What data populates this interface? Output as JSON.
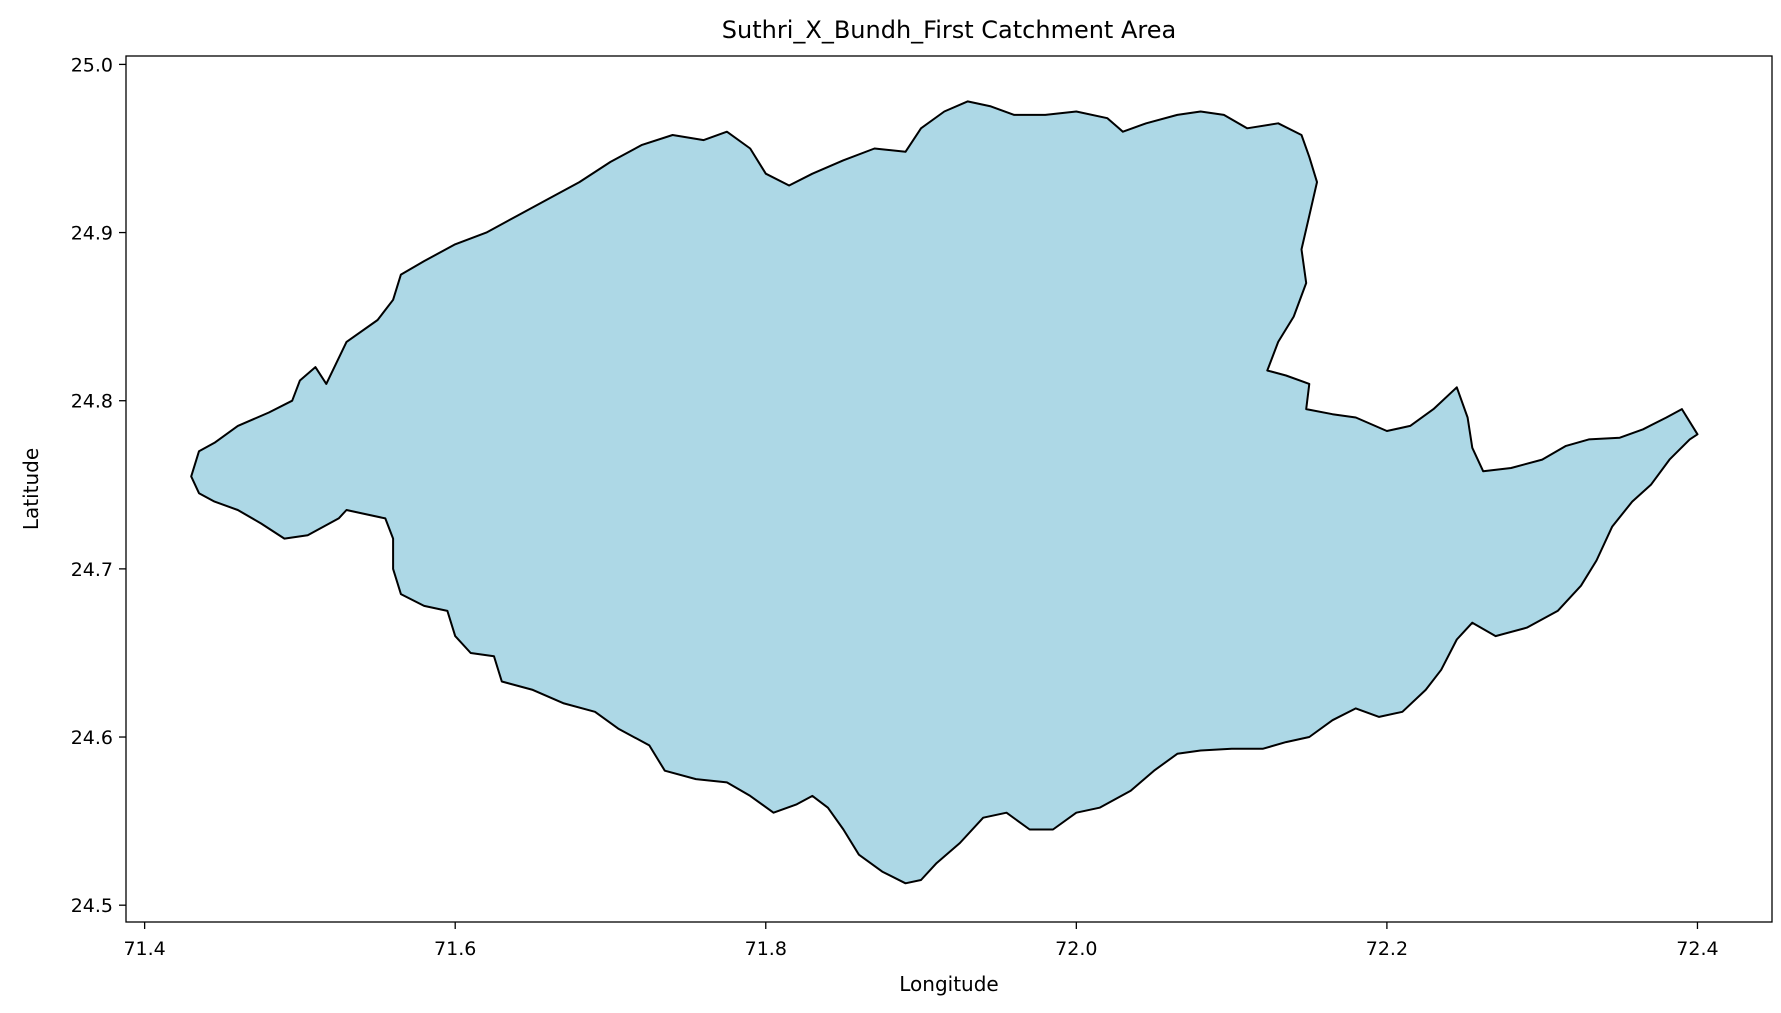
{
  "chart_data": {
    "type": "map-polygon",
    "title": "Suthri_X_Bundh_First Catchment Area",
    "xlabel": "Longitude",
    "ylabel": "Latitude",
    "xlim": [
      71.388,
      72.448
    ],
    "ylim": [
      24.49,
      25.005
    ],
    "xticks": [
      {
        "value": 71.4,
        "label": "71.4"
      },
      {
        "value": 71.6,
        "label": "71.6"
      },
      {
        "value": 71.8,
        "label": "71.8"
      },
      {
        "value": 72.0,
        "label": "72.0"
      },
      {
        "value": 72.2,
        "label": "72.2"
      },
      {
        "value": 72.4,
        "label": "72.4"
      }
    ],
    "yticks": [
      {
        "value": 24.5,
        "label": "24.5"
      },
      {
        "value": 24.6,
        "label": "24.6"
      },
      {
        "value": 24.7,
        "label": "24.7"
      },
      {
        "value": 24.8,
        "label": "24.8"
      },
      {
        "value": 24.9,
        "label": "24.9"
      },
      {
        "value": 25.0,
        "label": "25.0"
      }
    ],
    "grid": false,
    "fill_color": "#add8e6",
    "edge_color": "#000000",
    "boundary": [
      [
        71.43,
        24.755
      ],
      [
        71.435,
        24.77
      ],
      [
        71.445,
        24.775
      ],
      [
        71.46,
        24.785
      ],
      [
        71.48,
        24.793
      ],
      [
        71.495,
        24.8
      ],
      [
        71.5,
        24.812
      ],
      [
        71.51,
        24.82
      ],
      [
        71.517,
        24.81
      ],
      [
        71.53,
        24.835
      ],
      [
        71.55,
        24.848
      ],
      [
        71.56,
        24.86
      ],
      [
        71.565,
        24.875
      ],
      [
        71.58,
        24.883
      ],
      [
        71.6,
        24.893
      ],
      [
        71.62,
        24.9
      ],
      [
        71.64,
        24.91
      ],
      [
        71.66,
        24.92
      ],
      [
        71.68,
        24.93
      ],
      [
        71.7,
        24.942
      ],
      [
        71.72,
        24.952
      ],
      [
        71.74,
        24.958
      ],
      [
        71.76,
        24.955
      ],
      [
        71.775,
        24.96
      ],
      [
        71.79,
        24.95
      ],
      [
        71.8,
        24.935
      ],
      [
        71.815,
        24.928
      ],
      [
        71.83,
        24.935
      ],
      [
        71.85,
        24.943
      ],
      [
        71.87,
        24.95
      ],
      [
        71.89,
        24.948
      ],
      [
        71.9,
        24.962
      ],
      [
        71.915,
        24.972
      ],
      [
        71.93,
        24.978
      ],
      [
        71.945,
        24.975
      ],
      [
        71.96,
        24.97
      ],
      [
        71.98,
        24.97
      ],
      [
        72.0,
        24.972
      ],
      [
        72.02,
        24.968
      ],
      [
        72.03,
        24.96
      ],
      [
        72.045,
        24.965
      ],
      [
        72.065,
        24.97
      ],
      [
        72.08,
        24.972
      ],
      [
        72.095,
        24.97
      ],
      [
        72.11,
        24.962
      ],
      [
        72.13,
        24.965
      ],
      [
        72.145,
        24.958
      ],
      [
        72.15,
        24.945
      ],
      [
        72.155,
        24.93
      ],
      [
        72.15,
        24.91
      ],
      [
        72.145,
        24.89
      ],
      [
        72.148,
        24.87
      ],
      [
        72.14,
        24.85
      ],
      [
        72.13,
        24.835
      ],
      [
        72.123,
        24.818
      ],
      [
        72.135,
        24.815
      ],
      [
        72.15,
        24.81
      ],
      [
        72.148,
        24.795
      ],
      [
        72.165,
        24.792
      ],
      [
        72.18,
        24.79
      ],
      [
        72.2,
        24.782
      ],
      [
        72.215,
        24.785
      ],
      [
        72.23,
        24.795
      ],
      [
        72.245,
        24.808
      ],
      [
        72.252,
        24.79
      ],
      [
        72.255,
        24.772
      ],
      [
        72.262,
        24.758
      ],
      [
        72.28,
        24.76
      ],
      [
        72.3,
        24.765
      ],
      [
        72.315,
        24.773
      ],
      [
        72.33,
        24.777
      ],
      [
        72.35,
        24.778
      ],
      [
        72.365,
        24.783
      ],
      [
        72.38,
        24.79
      ],
      [
        72.39,
        24.795
      ],
      [
        72.4,
        24.78
      ],
      [
        72.395,
        24.777
      ],
      [
        72.382,
        24.765
      ],
      [
        72.37,
        24.75
      ],
      [
        72.358,
        24.74
      ],
      [
        72.345,
        24.725
      ],
      [
        72.335,
        24.705
      ],
      [
        72.325,
        24.69
      ],
      [
        72.31,
        24.675
      ],
      [
        72.29,
        24.665
      ],
      [
        72.27,
        24.66
      ],
      [
        72.255,
        24.668
      ],
      [
        72.245,
        24.658
      ],
      [
        72.235,
        24.64
      ],
      [
        72.225,
        24.628
      ],
      [
        72.21,
        24.615
      ],
      [
        72.195,
        24.612
      ],
      [
        72.18,
        24.617
      ],
      [
        72.165,
        24.61
      ],
      [
        72.15,
        24.6
      ],
      [
        72.135,
        24.597
      ],
      [
        72.12,
        24.593
      ],
      [
        72.1,
        24.593
      ],
      [
        72.08,
        24.592
      ],
      [
        72.065,
        24.59
      ],
      [
        72.05,
        24.58
      ],
      [
        72.035,
        24.568
      ],
      [
        72.015,
        24.558
      ],
      [
        72.0,
        24.555
      ],
      [
        71.985,
        24.545
      ],
      [
        71.97,
        24.545
      ],
      [
        71.955,
        24.555
      ],
      [
        71.94,
        24.552
      ],
      [
        71.925,
        24.537
      ],
      [
        71.91,
        24.525
      ],
      [
        71.9,
        24.515
      ],
      [
        71.89,
        24.513
      ],
      [
        71.875,
        24.52
      ],
      [
        71.86,
        24.53
      ],
      [
        71.85,
        24.545
      ],
      [
        71.84,
        24.558
      ],
      [
        71.83,
        24.565
      ],
      [
        71.82,
        24.56
      ],
      [
        71.805,
        24.555
      ],
      [
        71.79,
        24.565
      ],
      [
        71.775,
        24.573
      ],
      [
        71.755,
        24.575
      ],
      [
        71.735,
        24.58
      ],
      [
        71.725,
        24.595
      ],
      [
        71.705,
        24.605
      ],
      [
        71.69,
        24.615
      ],
      [
        71.67,
        24.62
      ],
      [
        71.65,
        24.628
      ],
      [
        71.63,
        24.633
      ],
      [
        71.625,
        24.648
      ],
      [
        71.61,
        24.65
      ],
      [
        71.6,
        24.66
      ],
      [
        71.595,
        24.675
      ],
      [
        71.58,
        24.678
      ],
      [
        71.565,
        24.685
      ],
      [
        71.56,
        24.7
      ],
      [
        71.56,
        24.718
      ],
      [
        71.555,
        24.73
      ],
      [
        71.54,
        24.733
      ],
      [
        71.53,
        24.735
      ],
      [
        71.525,
        24.73
      ],
      [
        71.505,
        24.72
      ],
      [
        71.49,
        24.718
      ],
      [
        71.475,
        24.727
      ],
      [
        71.46,
        24.735
      ],
      [
        71.445,
        24.74
      ],
      [
        71.435,
        24.745
      ]
    ]
  }
}
